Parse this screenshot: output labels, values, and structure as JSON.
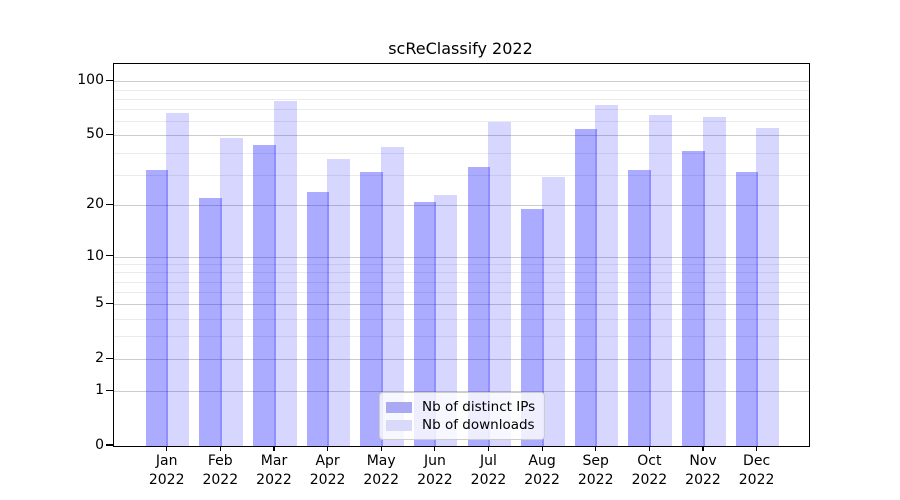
{
  "chart_data": {
    "type": "bar",
    "title": "scReClassify 2022",
    "categories": [
      "Jan",
      "Feb",
      "Mar",
      "Apr",
      "May",
      "Jun",
      "Jul",
      "Aug",
      "Sep",
      "Oct",
      "Nov",
      "Dec"
    ],
    "year_label": "2022",
    "series": [
      {
        "name": "Nb of distinct IPs",
        "color": "rgba(0,0,255,0.33)",
        "legend_color": "#aaaaf4",
        "values": [
          32,
          22,
          44,
          24,
          31,
          21,
          33,
          19,
          54,
          32,
          41,
          31
        ]
      },
      {
        "name": "Nb of downloads",
        "color": "rgba(0,0,255,0.16)",
        "legend_color": "#d9d9f9",
        "values": [
          67,
          48,
          78,
          37,
          43,
          23,
          59,
          29,
          74,
          65,
          63,
          55
        ]
      }
    ],
    "yticks": [
      0,
      1,
      2,
      5,
      10,
      20,
      50,
      100
    ],
    "yticks_minor": [
      3,
      4,
      6,
      7,
      8,
      9,
      30,
      40,
      60,
      70,
      80,
      90
    ],
    "yscale": "log1p",
    "ylim": [
      0,
      125
    ],
    "grid": true,
    "legend_position": "lower center",
    "colors": {
      "grid_major": "#cccccc",
      "grid_minor": "#ebebeb",
      "axis": "#000000",
      "legend_border": "#cccccc",
      "text": "#000000"
    }
  }
}
